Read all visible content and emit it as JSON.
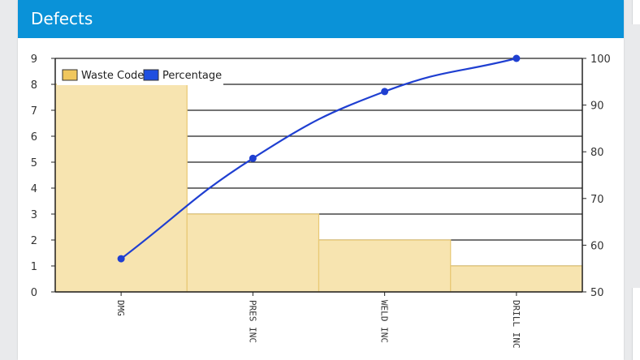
{
  "panel": {
    "title": "Defects"
  },
  "colors": {
    "header": "#0a92d8",
    "bar_fill": "#f7e4b0",
    "bar_stroke": "#e8c873",
    "line": "#1f3fd1",
    "legend_bar_swatch": "#f0c75e",
    "legend_line_swatch": "#1f4fe0"
  },
  "chart_data": {
    "type": "bar",
    "categories": [
      "DMG",
      "PRES INC",
      "WELD INC",
      "DRILL INC"
    ],
    "series": [
      {
        "name": "Waste Code",
        "type": "bar",
        "axis": "left",
        "values": [
          8,
          3,
          2,
          1
        ]
      },
      {
        "name": "Percentage",
        "type": "line",
        "axis": "right",
        "values": [
          57.1,
          78.6,
          92.9,
          100
        ]
      }
    ],
    "y_left": {
      "min": 0,
      "max": 9,
      "ticks": [
        "0",
        "1",
        "2",
        "3",
        "4",
        "5",
        "6",
        "7",
        "8",
        "9"
      ]
    },
    "y_right": {
      "min": 50,
      "max": 100,
      "ticks": [
        "50",
        "60",
        "70",
        "80",
        "90",
        "100"
      ]
    },
    "grid": true,
    "legend": {
      "placement": "top-left",
      "items": [
        "Waste Code",
        "Percentage"
      ]
    }
  }
}
